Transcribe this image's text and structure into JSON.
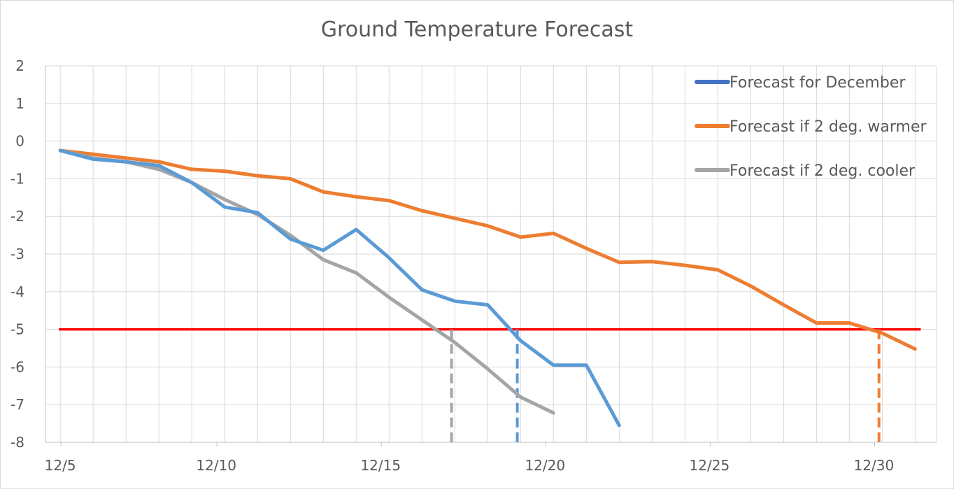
{
  "chart_data": {
    "type": "line",
    "title": "Ground Temperature Forecast",
    "xlabel": "",
    "ylabel": "",
    "x_axis": {
      "type": "date",
      "range": [
        "12/5",
        "12/31"
      ],
      "tick_labels": [
        "12/5",
        "12/10",
        "12/15",
        "12/20",
        "12/25",
        "12/30"
      ]
    },
    "y_axis": {
      "range": [
        -8,
        2
      ],
      "tick_labels": [
        "2",
        "1",
        "0",
        "-1",
        "-2",
        "-3",
        "-4",
        "-5",
        "-6",
        "-7",
        "-8"
      ]
    },
    "grid": true,
    "legend_position": "top-right",
    "series": [
      {
        "name": "Forecast for December",
        "color": "#5b9bd5",
        "points": [
          [
            "12/5",
            -0.25
          ],
          [
            "12/6",
            -0.48
          ],
          [
            "12/7",
            -0.55
          ],
          [
            "12/8",
            -0.65
          ],
          [
            "12/9",
            -1.1
          ],
          [
            "12/10",
            -1.75
          ],
          [
            "12/11",
            -1.9
          ],
          [
            "12/12",
            -2.6
          ],
          [
            "12/13",
            -2.9
          ],
          [
            "12/14",
            -2.35
          ],
          [
            "12/15",
            -3.1
          ],
          [
            "12/16",
            -3.95
          ],
          [
            "12/17",
            -4.25
          ],
          [
            "12/18",
            -4.35
          ],
          [
            "12/19",
            -5.3
          ],
          [
            "12/20",
            -5.95
          ],
          [
            "12/21",
            -5.95
          ],
          [
            "12/22",
            -7.55
          ]
        ]
      },
      {
        "name": "Forecast if 2 deg. warmer",
        "color": "#ed7d31",
        "points": [
          [
            "12/5",
            -0.25
          ],
          [
            "12/6",
            -0.35
          ],
          [
            "12/7",
            -0.45
          ],
          [
            "12/8",
            -0.55
          ],
          [
            "12/9",
            -0.75
          ],
          [
            "12/10",
            -0.8
          ],
          [
            "12/11",
            -0.92
          ],
          [
            "12/12",
            -1.0
          ],
          [
            "12/13",
            -1.35
          ],
          [
            "12/14",
            -1.48
          ],
          [
            "12/15",
            -1.58
          ],
          [
            "12/16",
            -1.85
          ],
          [
            "12/17",
            -2.05
          ],
          [
            "12/18",
            -2.25
          ],
          [
            "12/19",
            -2.55
          ],
          [
            "12/20",
            -2.45
          ],
          [
            "12/21",
            -2.85
          ],
          [
            "12/22",
            -3.22
          ],
          [
            "12/23",
            -3.2
          ],
          [
            "12/24",
            -3.3
          ],
          [
            "12/25",
            -3.42
          ],
          [
            "12/26",
            -3.85
          ],
          [
            "12/27",
            -4.35
          ],
          [
            "12/28",
            -4.83
          ],
          [
            "12/29",
            -4.83
          ],
          [
            "12/30",
            -5.1
          ],
          [
            "12/31",
            -5.52
          ]
        ]
      },
      {
        "name": "Forecast if 2 deg. cooler",
        "color": "#a5a5a5",
        "points": [
          [
            "12/5",
            -0.25
          ],
          [
            "12/6",
            -0.45
          ],
          [
            "12/7",
            -0.55
          ],
          [
            "12/8",
            -0.75
          ],
          [
            "12/9",
            -1.1
          ],
          [
            "12/10",
            -1.55
          ],
          [
            "12/11",
            -1.95
          ],
          [
            "12/12",
            -2.5
          ],
          [
            "12/13",
            -3.15
          ],
          [
            "12/14",
            -3.5
          ],
          [
            "12/15",
            -4.15
          ],
          [
            "12/16",
            -4.75
          ],
          [
            "12/17",
            -5.35
          ],
          [
            "12/18",
            -6.05
          ],
          [
            "12/19",
            -6.8
          ],
          [
            "12/20",
            -7.22
          ]
        ]
      }
    ],
    "reference_lines": [
      {
        "orientation": "horizontal",
        "y": -5,
        "from": "12/5",
        "to": "12/31",
        "color": "#ff0000",
        "style": "solid"
      },
      {
        "orientation": "vertical",
        "x": "12/16.9",
        "from_y": -5,
        "to_y": -8,
        "color": "#a5a5a5",
        "style": "dashed"
      },
      {
        "orientation": "vertical",
        "x": "12/18.9",
        "from_y": -5,
        "to_y": -8,
        "color": "#5b9bd5",
        "style": "dashed"
      },
      {
        "orientation": "vertical",
        "x": "12/29.9",
        "from_y": -5,
        "to_y": -8,
        "color": "#ed7d31",
        "style": "dashed"
      }
    ]
  }
}
